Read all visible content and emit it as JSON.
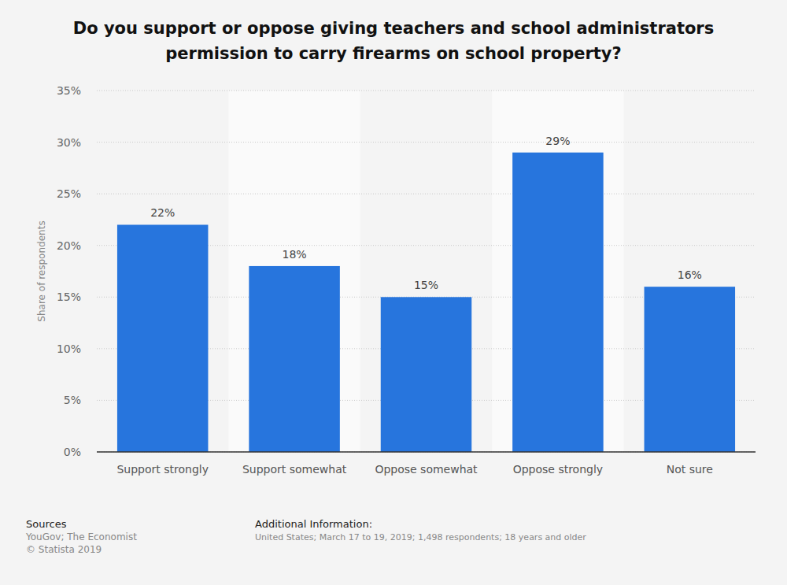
{
  "chart_data": {
    "type": "bar",
    "title": "Do you support or oppose giving teachers and school administrators permission to carry firearms on school property?",
    "categories": [
      "Support strongly",
      "Support somewhat",
      "Oppose somewhat",
      "Oppose strongly",
      "Not sure"
    ],
    "values": [
      22,
      18,
      15,
      29,
      16
    ],
    "value_labels": [
      "22%",
      "18%",
      "15%",
      "29%",
      "16%"
    ],
    "color": "#2775dd",
    "y_label": "Share of respondents",
    "ylim": [
      0,
      35
    ],
    "yticks": [
      {
        "value": 0,
        "label": "0%"
      },
      {
        "value": 5,
        "label": "5%"
      },
      {
        "value": 10,
        "label": "10%"
      },
      {
        "value": 15,
        "label": "15%"
      },
      {
        "value": 20,
        "label": "20%"
      },
      {
        "value": 25,
        "label": "25%"
      },
      {
        "value": 30,
        "label": "30%"
      },
      {
        "value": 35,
        "label": "35%"
      }
    ],
    "grid": true,
    "data_labels": true,
    "sources_heading": "Sources",
    "sources": [
      "YouGov; The Economist",
      "© Statista 2019"
    ],
    "additional_info_heading": "Additional Information:",
    "additional_info": "United States; March 17 to 19, 2019; 1,498 respondents; 18 years and older"
  }
}
